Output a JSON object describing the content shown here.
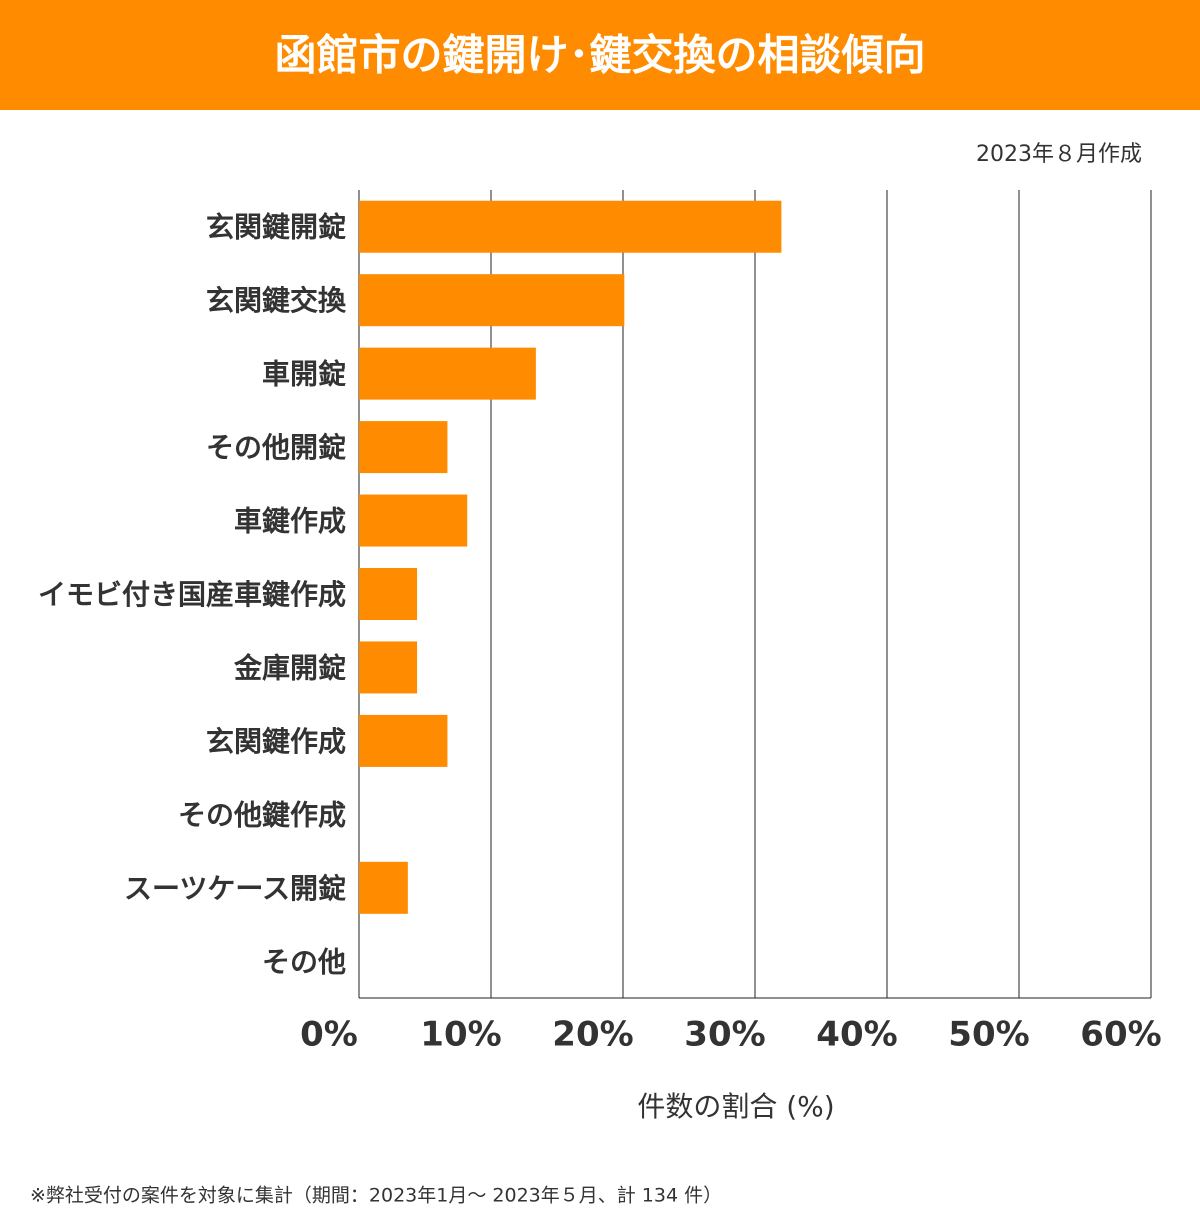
{
  "chart_data": {
    "type": "hbar",
    "title": "函館市の鍵開け･鍵交換の相談傾向",
    "subtitle": "2023年８月作成",
    "x_label": "件数の割合 (%)",
    "note": "※弊社受付の案件を対象に集計（期間：2023年1月～ 2023年５月、計 134 件）",
    "categories": [
      "玄関鍵開錠",
      "玄関鍵交換",
      "車開錠",
      "その他開錠",
      "車鍵作成",
      "イモビ付き国産車鍵作成",
      "金庫開錠",
      "玄関鍵作成",
      "その他鍵作成",
      "スーツケース開錠",
      "その他"
    ],
    "values": [
      32.0,
      20.1,
      13.4,
      6.7,
      8.2,
      4.4,
      4.4,
      6.7,
      0,
      3.7,
      0
    ],
    "color": "#ff8c00",
    "xlim": [
      0,
      60
    ],
    "xticks": [
      {
        "value": 0,
        "label": "0%"
      },
      {
        "value": 10,
        "label": "10%"
      },
      {
        "value": 20,
        "label": "20%"
      },
      {
        "value": 30,
        "label": "30%"
      },
      {
        "value": 40,
        "label": "40%"
      },
      {
        "value": 50,
        "label": "50%"
      },
      {
        "value": 60,
        "label": "60%"
      }
    ],
    "grid": true
  }
}
